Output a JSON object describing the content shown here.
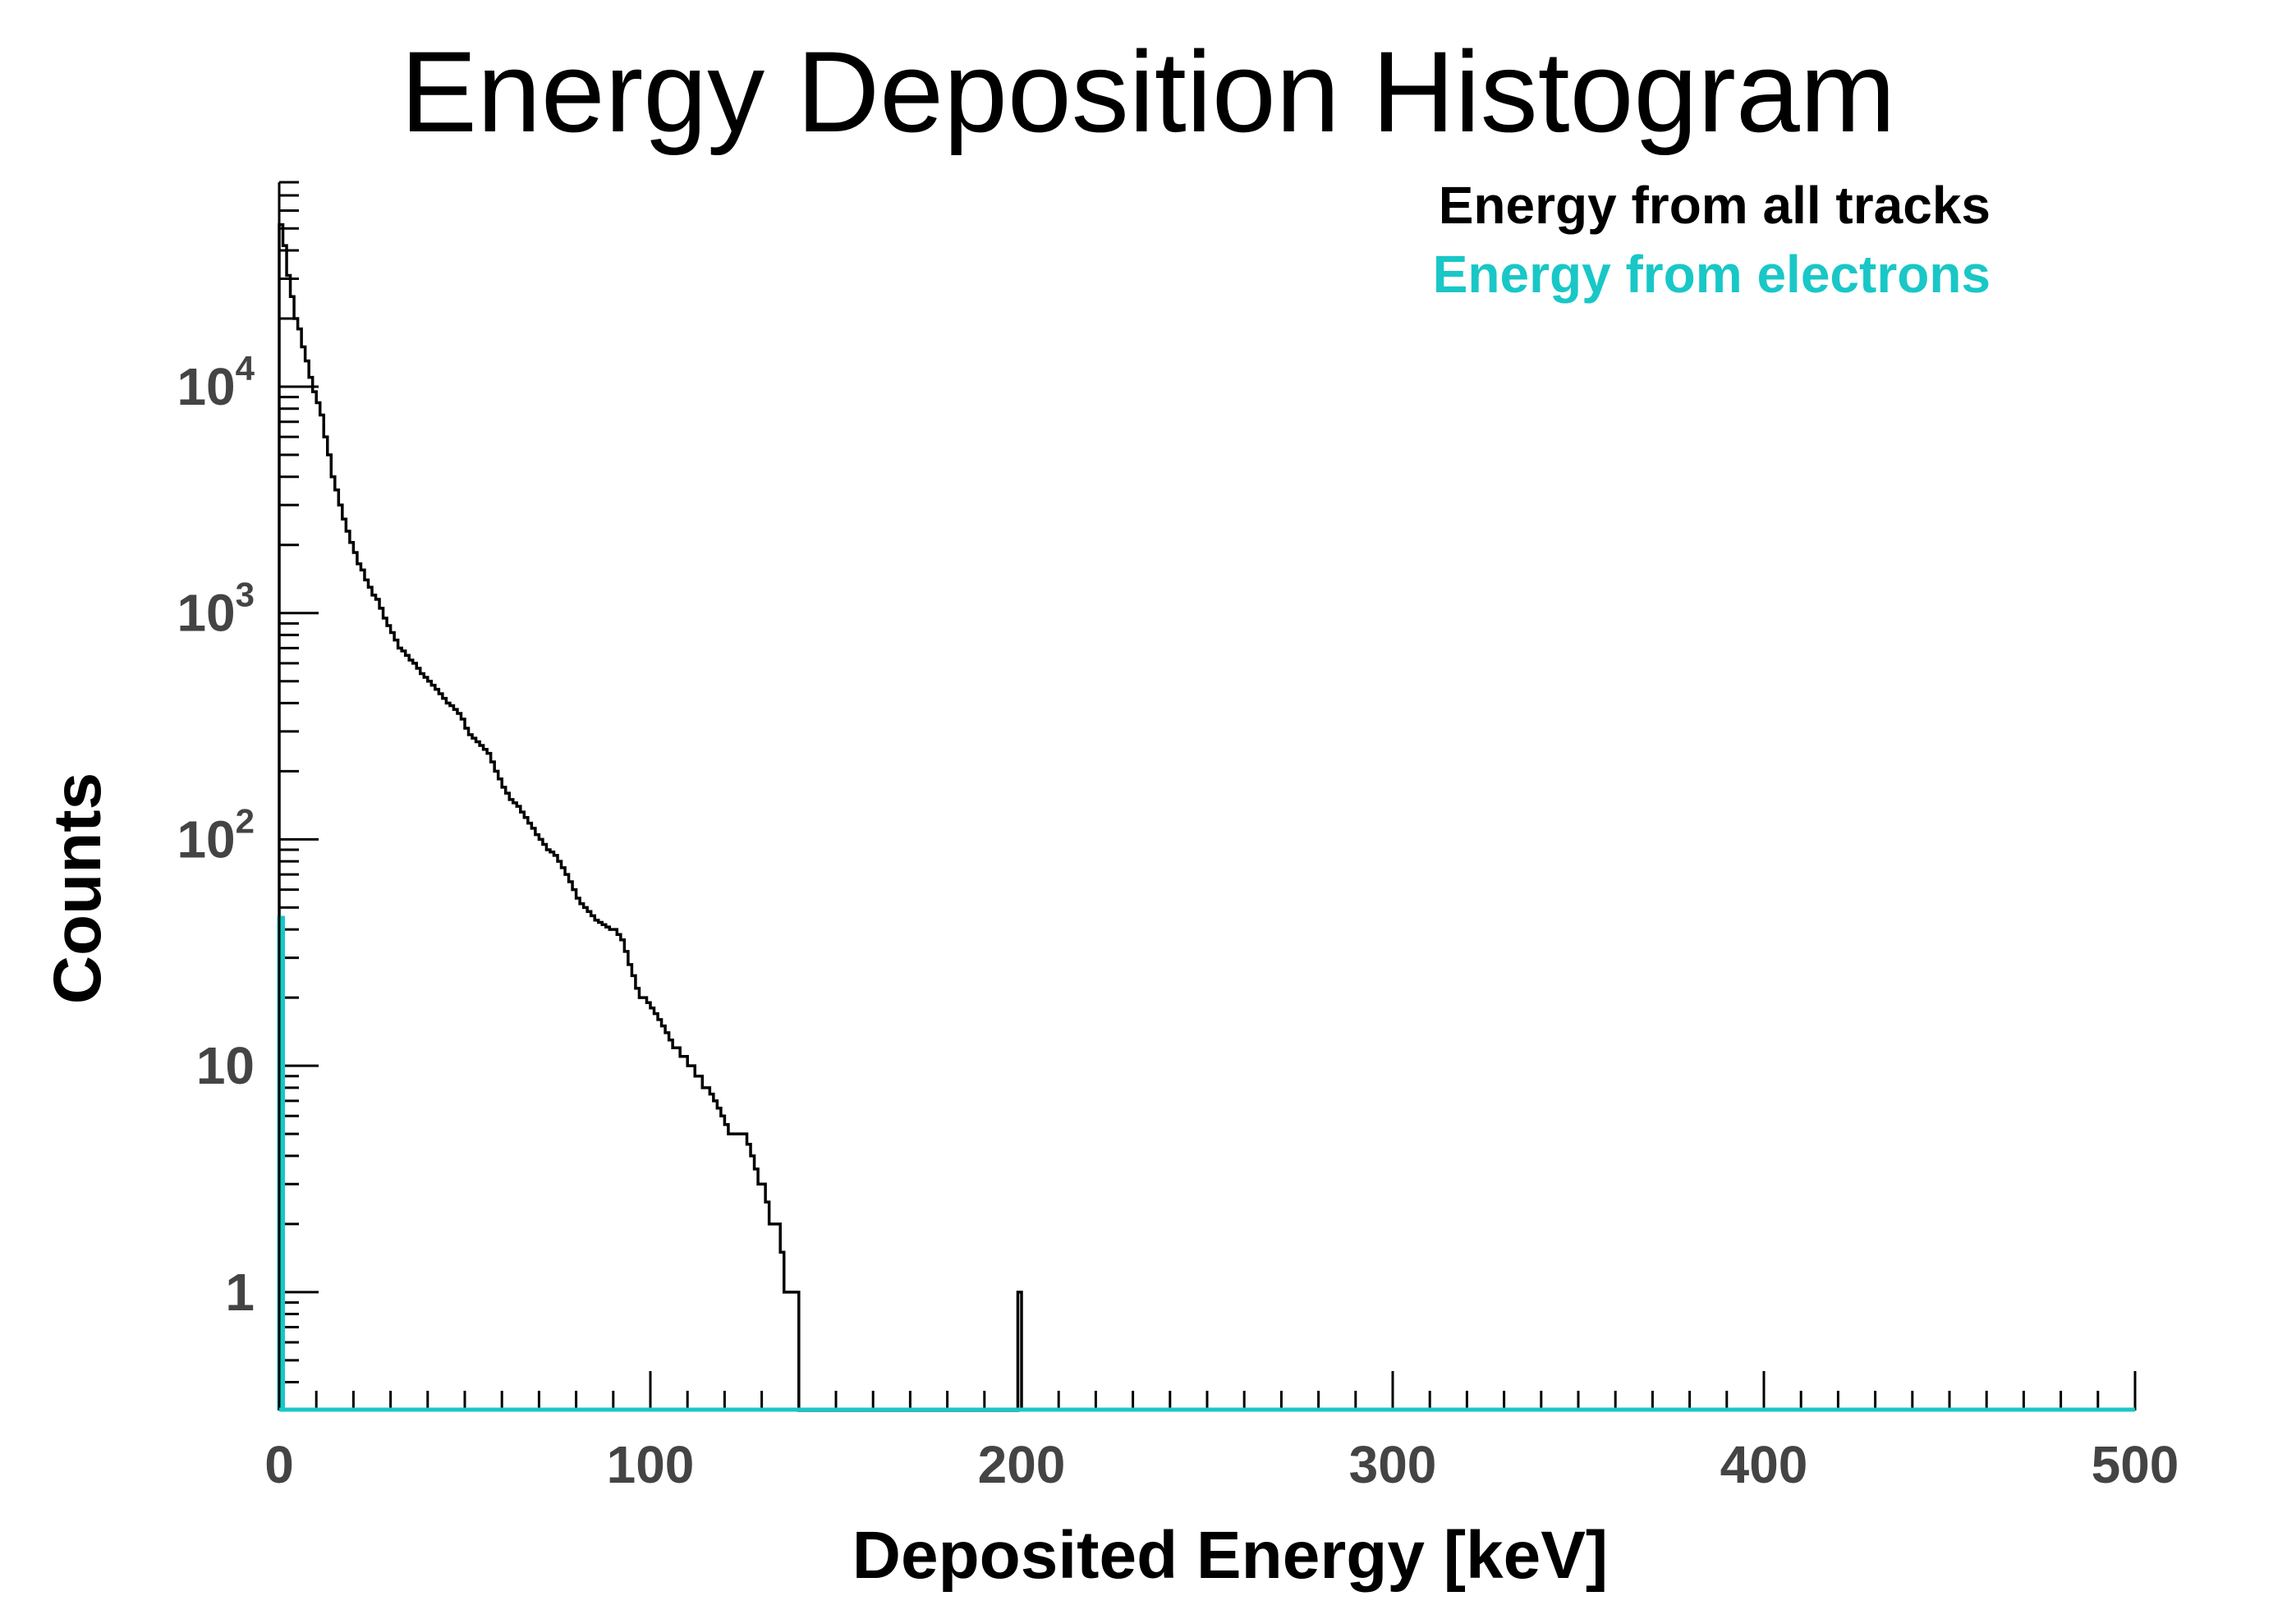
{
  "chart_data": {
    "type": "histogram",
    "title": "Energy Deposition Histogram",
    "xlabel": "Deposited Energy [keV]",
    "ylabel": "Counts",
    "xlim": [
      0,
      500
    ],
    "ylim": [
      0.3,
      80000
    ],
    "yscale": "log",
    "grid": false,
    "legend_position": "top-right",
    "x_ticks": [
      0,
      100,
      200,
      300,
      400,
      500
    ],
    "y_ticks": [
      {
        "value": 1,
        "label": "1"
      },
      {
        "value": 10,
        "label": "10"
      },
      {
        "value": 100,
        "base": "10",
        "exp": "2"
      },
      {
        "value": 1000,
        "base": "10",
        "exp": "3"
      },
      {
        "value": 10000,
        "base": "10",
        "exp": "4"
      }
    ],
    "bin_width": 1,
    "series": [
      {
        "name": "Energy from all tracks",
        "color": "#000000",
        "x_start": 0,
        "counts": [
          52000,
          42000,
          31000,
          25000,
          20000,
          18000,
          15000,
          13000,
          11000,
          9500,
          8500,
          7500,
          6000,
          5000,
          4000,
          3500,
          3000,
          2600,
          2300,
          2050,
          1850,
          1650,
          1550,
          1400,
          1300,
          1200,
          1150,
          1050,
          950,
          880,
          820,
          760,
          700,
          680,
          650,
          620,
          600,
          570,
          540,
          520,
          500,
          480,
          460,
          440,
          420,
          400,
          390,
          375,
          360,
          340,
          310,
          290,
          280,
          270,
          260,
          250,
          240,
          220,
          200,
          185,
          170,
          160,
          150,
          145,
          140,
          132,
          125,
          118,
          112,
          105,
          100,
          95,
          90,
          88,
          85,
          80,
          75,
          70,
          65,
          60,
          55,
          52,
          50,
          48,
          46,
          44,
          43,
          42,
          41,
          40,
          40,
          38,
          36,
          32,
          28,
          25,
          22,
          20,
          20,
          19,
          18,
          17,
          16,
          15,
          14,
          13,
          12,
          12,
          11,
          11,
          10,
          10,
          9,
          9,
          8,
          8,
          7.5,
          7,
          6.5,
          6,
          5.5,
          5,
          5,
          5,
          5,
          5,
          4.5,
          4,
          3.5,
          3,
          3,
          2.5,
          2,
          2,
          2,
          1.5,
          1,
          1,
          1,
          1,
          0,
          0,
          0,
          0,
          0,
          0,
          0,
          0,
          0,
          0,
          0,
          0,
          0,
          0,
          0,
          0,
          0,
          0,
          0,
          0,
          0,
          0,
          0,
          0,
          0,
          0,
          0,
          0,
          0,
          0,
          0,
          0,
          0,
          0,
          0,
          0,
          0,
          0,
          0,
          0,
          0,
          0,
          0,
          0,
          0,
          0,
          0,
          0,
          0,
          0,
          0,
          0,
          0,
          0,
          0,
          0,
          0,
          0,
          0,
          1
        ]
      },
      {
        "name": "Energy from electrons",
        "color": "#19c7c7",
        "x_start": 0,
        "counts": [
          45
        ]
      }
    ]
  }
}
